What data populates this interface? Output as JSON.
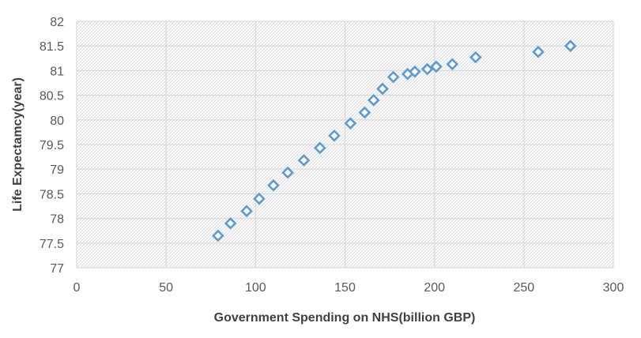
{
  "chart_data": {
    "type": "scatter",
    "title": "",
    "xlabel": "Government Spending on NHS(billion GBP)",
    "ylabel": "Life Expectamcy(year)",
    "xlim": [
      0,
      300
    ],
    "ylim": [
      77,
      82
    ],
    "xticks": [
      0,
      50,
      100,
      150,
      200,
      250,
      300
    ],
    "yticks": [
      77,
      77.5,
      78,
      78.5,
      79,
      79.5,
      80,
      80.5,
      81,
      81.5,
      82
    ],
    "grid": true,
    "plot_background": "hatched",
    "marker": "diamond-outline",
    "series": [
      {
        "color": "#5b9bd5",
        "points": [
          [
            79,
            77.65
          ],
          [
            86,
            77.9
          ],
          [
            95,
            78.15
          ],
          [
            102,
            78.4
          ],
          [
            110,
            78.67
          ],
          [
            118,
            78.93
          ],
          [
            127,
            79.18
          ],
          [
            136,
            79.43
          ],
          [
            144,
            79.68
          ],
          [
            153,
            79.93
          ],
          [
            161,
            80.15
          ],
          [
            166,
            80.4
          ],
          [
            171,
            80.63
          ],
          [
            177,
            80.87
          ],
          [
            185,
            80.93
          ],
          [
            189,
            80.98
          ],
          [
            196,
            81.03
          ],
          [
            201,
            81.08
          ],
          [
            210,
            81.13
          ],
          [
            223,
            81.27
          ],
          [
            258,
            81.38
          ],
          [
            276,
            81.5
          ]
        ]
      }
    ]
  }
}
